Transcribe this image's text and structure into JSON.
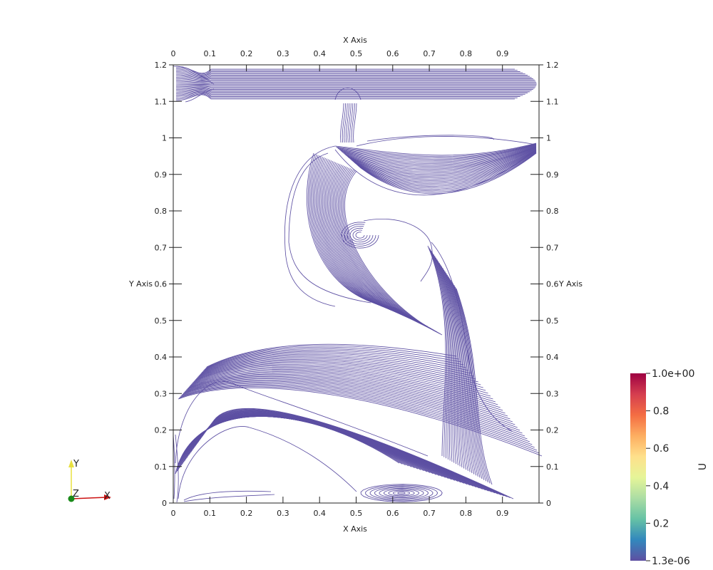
{
  "chart_data": {
    "type": "streamline",
    "x_axis": {
      "title": "X Axis",
      "ticks": [
        0,
        0.1,
        0.2,
        0.3,
        0.4,
        0.5,
        0.6,
        0.7,
        0.8,
        0.9
      ],
      "tick_labels": [
        "0",
        "0.1",
        "0.2",
        "0.3",
        "0.4",
        "0.5",
        "0.6",
        "0.7",
        "0.8",
        "0.9"
      ],
      "range": [
        0,
        1
      ]
    },
    "y_axis": {
      "title": "Y Axis",
      "ticks": [
        0,
        0.1,
        0.2,
        0.3,
        0.4,
        0.5,
        0.6,
        0.7,
        0.8,
        0.9,
        1,
        1.1,
        1.2
      ],
      "tick_labels": [
        "0",
        "0.1",
        "0.2",
        "0.3",
        "0.4",
        "0.5",
        "0.6",
        "0.7",
        "0.8",
        "0.9",
        "1",
        "1.1",
        "1.2"
      ],
      "range": [
        0,
        1.2
      ]
    },
    "line_color": "#5d50a3",
    "colorbar": {
      "title": "U",
      "min_label": "1.3e-06",
      "max_label": "1.0e+00",
      "tick_values": [
        0.2,
        0.4,
        0.6,
        0.8
      ],
      "tick_labels": [
        "0.2",
        "0.4",
        "0.6",
        "0.8"
      ],
      "colors": [
        "#5e4fa2",
        "#3288bd",
        "#66c2a5",
        "#abdda4",
        "#e6f598",
        "#fee08b",
        "#fdae61",
        "#f46d43",
        "#d53e4f",
        "#9e0142"
      ]
    },
    "orientation_axes": {
      "labels": [
        "X",
        "Y",
        "Z"
      ],
      "colors": {
        "x": "#cc1111",
        "y": "#e8e040",
        "z": "#1a8a1a"
      }
    }
  }
}
